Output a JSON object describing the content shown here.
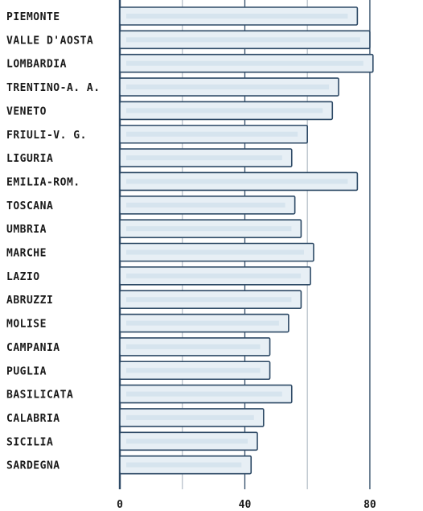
{
  "chart_data": {
    "type": "bar",
    "orientation": "horizontal",
    "categories": [
      "PIEMONTE",
      "VALLE D'AOSTA",
      "LOMBARDIA",
      "TRENTINO-A. A.",
      "VENETO",
      "FRIULI-V. G.",
      "LIGURIA",
      "EMILIA-ROM.",
      "TOSCANA",
      "UMBRIA",
      "MARCHE",
      "LAZIO",
      "ABRUZZI",
      "MOLISE",
      "CAMPANIA",
      "PUGLIA",
      "BASILICATA",
      "CALABRIA",
      "SICILIA",
      "SARDEGNA"
    ],
    "values": [
      76,
      80,
      81,
      70,
      68,
      60,
      55,
      76,
      56,
      58,
      62,
      61,
      58,
      54,
      48,
      48,
      55,
      46,
      44,
      42
    ],
    "xlim": [
      0,
      97
    ],
    "xticks": [
      0,
      40,
      80
    ],
    "xtick_labels": [
      "0",
      "40",
      "80"
    ],
    "grid": true,
    "colors": {
      "bar_fill": "#e7eff5",
      "bar_stroke": "#2e4a66",
      "grid": "#2e4a66"
    }
  }
}
